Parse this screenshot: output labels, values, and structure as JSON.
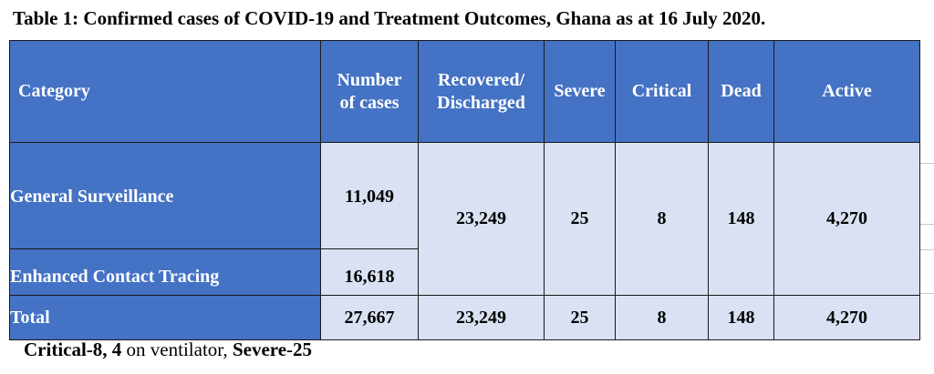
{
  "title": "Table 1: Confirmed cases of COVID-19 and Treatment Outcomes, Ghana as at 16 July 2020.",
  "table": {
    "headers": {
      "category": "Category",
      "cases_line1": "Number",
      "cases_line2": "of cases",
      "recovered_line1": "Recovered/",
      "recovered_line2": "Discharged",
      "severe": "Severe",
      "critical": "Critical",
      "dead": "Dead",
      "active": "Active"
    },
    "rows": {
      "general_surveillance": {
        "category": "General Surveillance",
        "cases": "11,049"
      },
      "enhanced_contact_tracing": {
        "category": "Enhanced Contact Tracing",
        "cases": "16,618"
      },
      "shared": {
        "recovered": "23,249",
        "severe": "25",
        "critical": "8",
        "dead": "148",
        "active": "4,270"
      },
      "total": {
        "category": "Total",
        "cases": "27,667",
        "recovered": "23,249",
        "severe": "25",
        "critical": "8",
        "dead": "148",
        "active": "4,270"
      }
    },
    "colors": {
      "header_bg": "#4472c4",
      "cell_bg": "#d9e1f2"
    }
  },
  "note": {
    "part1": "Critical-8,",
    "part2": "4",
    "part3": "on ventilator,",
    "part4": "Severe-25"
  }
}
